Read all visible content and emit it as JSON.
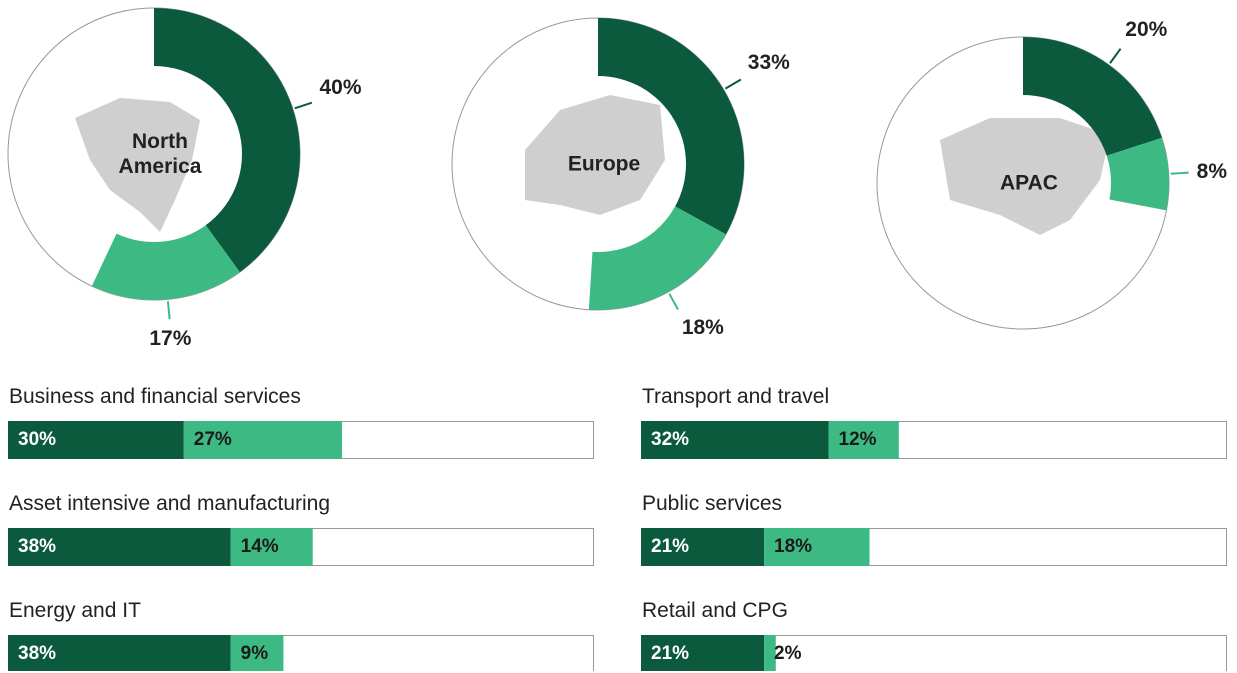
{
  "chart_data": [
    {
      "type": "donut",
      "title": "North America",
      "values": [
        40,
        17
      ],
      "value_labels": [
        "40%",
        "17%"
      ],
      "colors": [
        "#0b5a3e",
        "#3dba84"
      ]
    },
    {
      "type": "donut",
      "title": "Europe",
      "values": [
        33,
        18
      ],
      "value_labels": [
        "33%",
        "18%"
      ],
      "colors": [
        "#0b5a3e",
        "#3dba84"
      ]
    },
    {
      "type": "donut",
      "title": "APAC",
      "values": [
        20,
        8
      ],
      "value_labels": [
        "20%",
        "8%"
      ],
      "colors": [
        "#0b5a3e",
        "#3dba84"
      ]
    },
    {
      "type": "stacked-bar",
      "title": "Business and financial services",
      "values": [
        30,
        27
      ],
      "value_labels": [
        "30%",
        "27%"
      ],
      "colors": [
        "#0b5a3e",
        "#3dba84"
      ],
      "xlim": [
        0,
        100
      ]
    },
    {
      "type": "stacked-bar",
      "title": "Transport and travel",
      "values": [
        32,
        12
      ],
      "value_labels": [
        "32%",
        "12%"
      ],
      "colors": [
        "#0b5a3e",
        "#3dba84"
      ],
      "xlim": [
        0,
        100
      ]
    },
    {
      "type": "stacked-bar",
      "title": "Asset intensive and manufacturing",
      "values": [
        38,
        14
      ],
      "value_labels": [
        "38%",
        "14%"
      ],
      "colors": [
        "#0b5a3e",
        "#3dba84"
      ],
      "xlim": [
        0,
        100
      ]
    },
    {
      "type": "stacked-bar",
      "title": "Public services",
      "values": [
        21,
        18
      ],
      "value_labels": [
        "21%",
        "18%"
      ],
      "colors": [
        "#0b5a3e",
        "#3dba84"
      ],
      "xlim": [
        0,
        100
      ]
    },
    {
      "type": "stacked-bar",
      "title": "Energy and IT",
      "values": [
        38,
        9
      ],
      "value_labels": [
        "38%",
        "9%"
      ],
      "colors": [
        "#0b5a3e",
        "#3dba84"
      ],
      "xlim": [
        0,
        100
      ]
    },
    {
      "type": "stacked-bar",
      "title": "Retail and CPG",
      "values": [
        21,
        2
      ],
      "value_labels": [
        "21%",
        "2%"
      ],
      "colors": [
        "#0b5a3e",
        "#3dba84"
      ],
      "xlim": [
        0,
        100
      ]
    }
  ]
}
